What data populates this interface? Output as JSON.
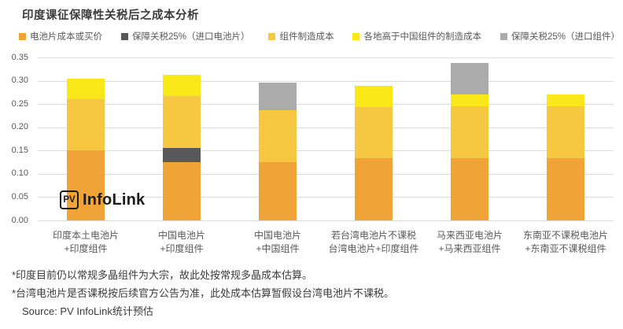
{
  "title": "印度课征保障性关税后之成本分析",
  "logo": {
    "badge": "PV",
    "text": "InfoLink"
  },
  "footnotes": [
    "*印度目前仍以常规多晶组件为大宗，故此处按常规多晶成本估算。",
    "*台湾电池片是否课税按后续官方公告为准，此处成本估算暂假设台湾电池片不课税。"
  ],
  "source": "Source: PV InfoLink统计预估",
  "chart_data": {
    "type": "bar",
    "stacked": true,
    "title": "印度课征保障性关税后之成本分析",
    "categories": [
      [
        "印度本土电池片",
        "+印度组件"
      ],
      [
        "中国电池片",
        "+印度组件"
      ],
      [
        "中国电池片",
        "+中国组件"
      ],
      [
        "若台湾电池片不课税",
        "台湾电池片+印度组件"
      ],
      [
        "马来西亚电池片",
        "+马来西亚组件"
      ],
      [
        "东南亚不课税电池片",
        "+东南亚不课税组件"
      ]
    ],
    "series": [
      {
        "name": "电池片成本或买价",
        "color": "#F0A437",
        "values": [
          0.15,
          0.125,
          0.125,
          0.133,
          0.133,
          0.133
        ]
      },
      {
        "name": "保障关税25%（进口电池片）",
        "color": "#58585A",
        "values": [
          0,
          0.031,
          0,
          0,
          0,
          0
        ]
      },
      {
        "name": "组件制造成本",
        "color": "#F6C842",
        "values": [
          0.11,
          0.111,
          0.112,
          0.111,
          0.112,
          0.112
        ]
      },
      {
        "name": "各地高于中国组件的制造成本",
        "color": "#FAE718",
        "values": [
          0.045,
          0.046,
          0,
          0.046,
          0.026,
          0.025
        ]
      },
      {
        "name": "保障关税25%（进口组件）",
        "color": "#ACABAB",
        "values": [
          0,
          0,
          0.059,
          0,
          0.068,
          0
        ]
      }
    ],
    "totals": [
      0.305,
      0.313,
      0.296,
      0.29,
      0.339,
      0.27
    ],
    "ylim": [
      0,
      0.35
    ],
    "ytick_step": 0.05,
    "yticks": [
      "0.00",
      "0.05",
      "0.10",
      "0.15",
      "0.20",
      "0.25",
      "0.30",
      "0.35"
    ],
    "grid": true,
    "legend_position": "top",
    "xlabel": "",
    "ylabel": ""
  }
}
